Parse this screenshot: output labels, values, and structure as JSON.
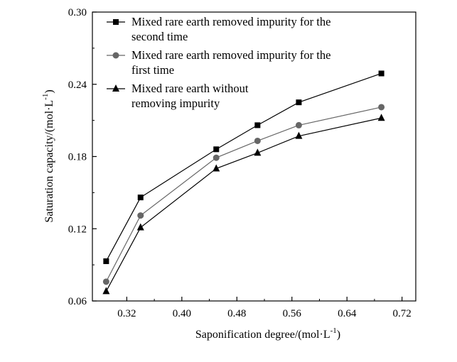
{
  "chart_data": {
    "type": "line",
    "xlabel": "Saponification degree/(mol·L",
    "xlabel_sup": "-1",
    "xlabel_tail": ")",
    "ylabel": "Saturation capacity/(mol·L",
    "ylabel_sup": "-1",
    "ylabel_tail": ")",
    "xlim": [
      0.27,
      0.74
    ],
    "ylim": [
      0.06,
      0.3
    ],
    "xticks": [
      0.32,
      0.4,
      0.48,
      0.56,
      0.64,
      0.72
    ],
    "xtick_labels": [
      "0.32",
      "0.40",
      "0.48",
      "0.56",
      "0.64",
      "0.72"
    ],
    "yticks": [
      0.06,
      0.12,
      0.18,
      0.24,
      0.3
    ],
    "ytick_labels": [
      "0.06",
      "0.12",
      "0.18",
      "0.24",
      "0.30"
    ],
    "grid": false,
    "legend_position": "top-left",
    "x": [
      0.29,
      0.34,
      0.45,
      0.51,
      0.57,
      0.69
    ],
    "series": [
      {
        "name_lines": [
          "Mixed rare earth removed impurity for the",
          "second time"
        ],
        "marker": "square",
        "color": "#000000",
        "values": [
          0.093,
          0.146,
          0.186,
          0.206,
          0.225,
          0.249
        ]
      },
      {
        "name_lines": [
          "Mixed rare earth removed impurity for the",
          "first time"
        ],
        "marker": "circle",
        "color": "#666666",
        "values": [
          0.076,
          0.131,
          0.179,
          0.193,
          0.206,
          0.221
        ]
      },
      {
        "name_lines": [
          "Mixed rare earth without",
          "removing impurity"
        ],
        "marker": "triangle",
        "color": "#000000",
        "values": [
          0.068,
          0.121,
          0.17,
          0.183,
          0.197,
          0.212
        ]
      }
    ]
  }
}
